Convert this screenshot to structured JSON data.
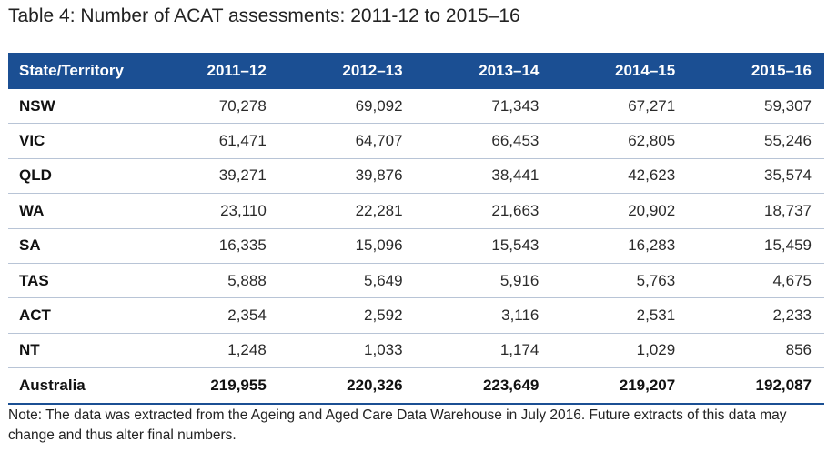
{
  "title": "Table 4: Number of ACAT assessments: 2011-12 to 2015–16",
  "note": "Note: The data was extracted from the Ageing and Aged Care Data Warehouse in July 2016. Future extracts of this data may change and thus alter final numbers.",
  "colors": {
    "header_bg": "#1b4f93",
    "header_text": "#ffffff",
    "row_rule": "#b8c4d6"
  },
  "chart_data": {
    "type": "table",
    "title": "Table 4: Number of ACAT assessments: 2011-12 to 2015–16",
    "columns": [
      "State/Territory",
      "2011–12",
      "2012–13",
      "2013–14",
      "2014–15",
      "2015–16"
    ],
    "rows": [
      [
        "NSW",
        "70,278",
        "69,092",
        "71,343",
        "67,271",
        "59,307"
      ],
      [
        "VIC",
        "61,471",
        "64,707",
        "66,453",
        "62,805",
        "55,246"
      ],
      [
        "QLD",
        "39,271",
        "39,876",
        "38,441",
        "42,623",
        "35,574"
      ],
      [
        "WA",
        "23,110",
        "22,281",
        "21,663",
        "20,902",
        "18,737"
      ],
      [
        "SA",
        "16,335",
        "15,096",
        "15,543",
        "16,283",
        "15,459"
      ],
      [
        "TAS",
        "5,888",
        "5,649",
        "5,916",
        "5,763",
        "4,675"
      ],
      [
        "ACT",
        "2,354",
        "2,592",
        "3,116",
        "2,531",
        "2,233"
      ],
      [
        "NT",
        "1,248",
        "1,033",
        "1,174",
        "1,029",
        "856"
      ],
      [
        "Australia",
        "219,955",
        "220,326",
        "223,649",
        "219,207",
        "192,087"
      ]
    ],
    "total_row_label": "Australia"
  }
}
